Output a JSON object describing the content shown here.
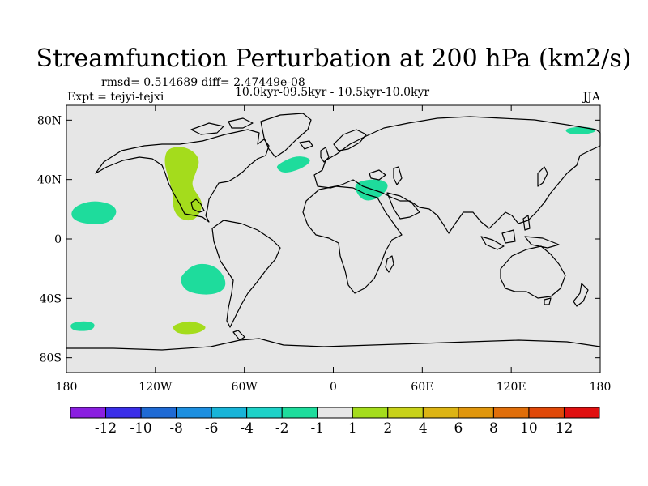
{
  "chart_data": {
    "type": "heatmap",
    "title": "Streamfunction Perturbation at 200 hPa (km2/s)",
    "stats": "rmsd= 0.514689 diff= 2.47449e-08",
    "periods": "10.0kyr-09.5kyr - 10.5kyr-10.0kyr",
    "experiment": "Expt = tejyi-tejxi",
    "season": "JJA",
    "map_projection": "cylindrical equidistant",
    "xlim": [
      -180,
      180
    ],
    "ylim": [
      -90,
      90
    ],
    "x_ticks": [
      {
        "value": -180,
        "label": "180"
      },
      {
        "value": -120,
        "label": "120W"
      },
      {
        "value": -60,
        "label": "60W"
      },
      {
        "value": 0,
        "label": "0"
      },
      {
        "value": 60,
        "label": "60E"
      },
      {
        "value": 120,
        "label": "120E"
      },
      {
        "value": 180,
        "label": "180"
      }
    ],
    "y_ticks": [
      {
        "value": 80,
        "label": "80N"
      },
      {
        "value": 40,
        "label": "40N"
      },
      {
        "value": 0,
        "label": "0"
      },
      {
        "value": -40,
        "label": "40S"
      },
      {
        "value": -80,
        "label": "80S"
      }
    ],
    "colorbar": {
      "colors": [
        "#8a1fe0",
        "#3a2ee8",
        "#1f6ad4",
        "#1d8fe0",
        "#18b4d8",
        "#1ed2c8",
        "#1edc9c",
        "#e6e6e6",
        "#a4dc1c",
        "#c8d21a",
        "#dcb414",
        "#e0960c",
        "#e06e0a",
        "#e04808",
        "#e01010"
      ],
      "labels": [
        "-12",
        "-10",
        "-8",
        "-6",
        "-4",
        "-2",
        "-1",
        "1",
        "2",
        "4",
        "6",
        "8",
        "10",
        "12"
      ]
    },
    "features": [
      {
        "name": "positive-anomaly-north-america",
        "level": "1 to 2",
        "color": "#a4dc1c",
        "polygon": [
          [
            -113,
            59
          ],
          [
            -108,
            62
          ],
          [
            -100,
            62
          ],
          [
            -93,
            58
          ],
          [
            -90,
            52
          ],
          [
            -93,
            44
          ],
          [
            -96,
            36
          ],
          [
            -90,
            28
          ],
          [
            -88,
            22
          ],
          [
            -92,
            14
          ],
          [
            -98,
            12
          ],
          [
            -104,
            14
          ],
          [
            -108,
            20
          ],
          [
            -108,
            28
          ],
          [
            -110,
            38
          ],
          [
            -114,
            50
          ]
        ]
      },
      {
        "name": "positive-anomaly-south-atlantic",
        "level": "1 to 2",
        "color": "#a4dc1c",
        "polygon": [
          [
            -108,
            -58
          ],
          [
            -98,
            -55
          ],
          [
            -89,
            -57
          ],
          [
            -85,
            -60
          ],
          [
            -92,
            -64
          ],
          [
            -104,
            -64
          ],
          [
            -108,
            -61
          ]
        ]
      },
      {
        "name": "negative-anomaly-north-atlantic",
        "level": "-2 to -1",
        "color": "#1edc9c",
        "polygon": [
          [
            -38,
            50
          ],
          [
            -26,
            56
          ],
          [
            -17,
            55
          ],
          [
            -15,
            52
          ],
          [
            -22,
            47
          ],
          [
            -33,
            44
          ],
          [
            -38,
            47
          ]
        ]
      },
      {
        "name": "negative-anomaly-mediterranean",
        "level": "-2 to -1",
        "color": "#1edc9c",
        "polygon": [
          [
            14,
            37
          ],
          [
            22,
            40
          ],
          [
            33,
            40
          ],
          [
            38,
            36
          ],
          [
            32,
            28
          ],
          [
            22,
            25
          ],
          [
            16,
            30
          ]
        ]
      },
      {
        "name": "negative-anomaly-north-pacific",
        "level": "-2 to -1",
        "color": "#1edc9c",
        "polygon": [
          [
            -176,
            21
          ],
          [
            -164,
            26
          ],
          [
            -150,
            24
          ],
          [
            -145,
            18
          ],
          [
            -152,
            10
          ],
          [
            -168,
            10
          ],
          [
            -177,
            14
          ]
        ]
      },
      {
        "name": "negative-anomaly-south-pacific",
        "level": "-2 to -1",
        "color": "#1edc9c",
        "polygon": [
          [
            -103,
            -25
          ],
          [
            -93,
            -16
          ],
          [
            -79,
            -18
          ],
          [
            -72,
            -28
          ],
          [
            -74,
            -35
          ],
          [
            -84,
            -38
          ],
          [
            -98,
            -36
          ],
          [
            -103,
            -30
          ]
        ]
      },
      {
        "name": "negative-anomaly-southern-ocean",
        "level": "-2 to -1",
        "color": "#1edc9c",
        "polygon": [
          [
            -178,
            -57
          ],
          [
            -168,
            -55
          ],
          [
            -160,
            -57
          ],
          [
            -163,
            -62
          ],
          [
            -176,
            -62
          ]
        ]
      },
      {
        "name": "negative-anomaly-east-siberia",
        "level": "-2 to -1",
        "color": "#1edc9c",
        "polygon": [
          [
            155,
            74
          ],
          [
            168,
            76
          ],
          [
            178,
            74
          ],
          [
            175,
            71
          ],
          [
            160,
            70
          ]
        ]
      }
    ]
  }
}
